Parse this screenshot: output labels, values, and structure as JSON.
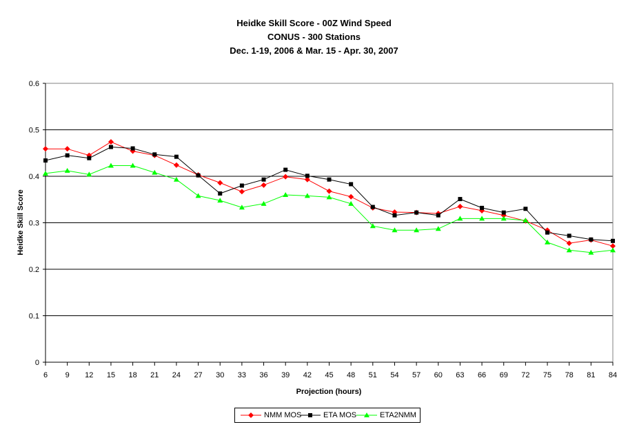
{
  "chart_data": {
    "type": "line",
    "title": [
      "Heidke Skill Score - 00Z Wind Speed",
      "CONUS - 300 Stations",
      "Dec. 1-19, 2006 & Mar. 15 - Apr. 30, 2007"
    ],
    "xlabel": "Projection (hours)",
    "ylabel": "Heidke Skill Score",
    "ylim": [
      0,
      0.6
    ],
    "yticks": [
      "0",
      "0.1",
      "0.2",
      "0.3",
      "0.4",
      "0.5",
      "0.6"
    ],
    "x": [
      6,
      9,
      12,
      15,
      18,
      21,
      24,
      27,
      30,
      33,
      36,
      39,
      42,
      45,
      48,
      51,
      54,
      57,
      60,
      63,
      66,
      69,
      72,
      75,
      78,
      81,
      84
    ],
    "grid": "horizontal",
    "legend_position": "bottom",
    "series": [
      {
        "name": "NMM MOS",
        "color": "#ff0000",
        "marker": "diamond",
        "values": [
          0.459,
          0.459,
          0.445,
          0.474,
          0.454,
          0.445,
          0.424,
          0.403,
          0.386,
          0.367,
          0.381,
          0.399,
          0.393,
          0.368,
          0.356,
          0.332,
          0.323,
          0.322,
          0.32,
          0.335,
          0.326,
          0.316,
          0.304,
          0.284,
          0.256,
          0.263,
          0.25
        ]
      },
      {
        "name": "ETA MOS",
        "color": "#000000",
        "marker": "square",
        "values": [
          0.434,
          0.445,
          0.439,
          0.463,
          0.46,
          0.447,
          0.442,
          0.402,
          0.363,
          0.38,
          0.393,
          0.414,
          0.401,
          0.393,
          0.383,
          0.334,
          0.316,
          0.322,
          0.316,
          0.351,
          0.332,
          0.322,
          0.33,
          0.279,
          0.272,
          0.264,
          0.261
        ]
      },
      {
        "name": "ETA2NMM",
        "color": "#00ff00",
        "marker": "triangle",
        "values": [
          0.406,
          0.412,
          0.404,
          0.423,
          0.423,
          0.408,
          0.393,
          0.358,
          0.348,
          0.333,
          0.341,
          0.36,
          0.358,
          0.355,
          0.341,
          0.293,
          0.284,
          0.284,
          0.287,
          0.309,
          0.309,
          0.309,
          0.305,
          0.258,
          0.241,
          0.236,
          0.241
        ]
      }
    ]
  }
}
